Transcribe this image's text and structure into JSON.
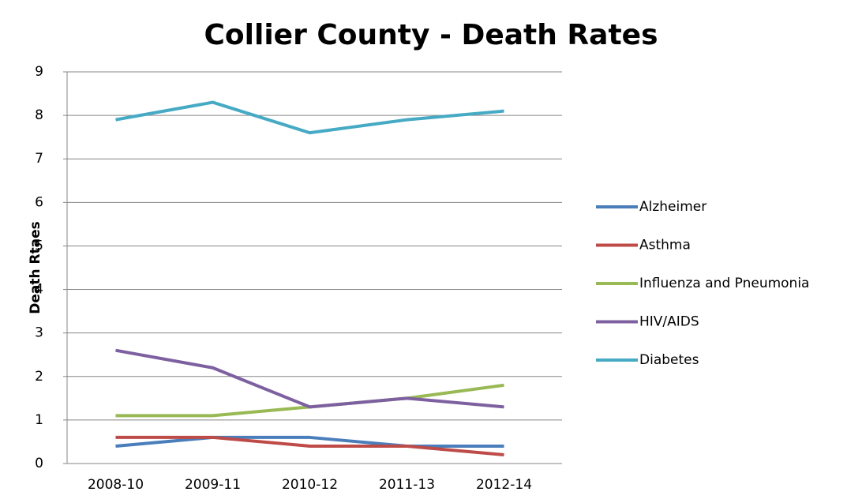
{
  "chart_data": {
    "type": "line",
    "title": "Collier County - Death Rates",
    "y_label": "Death Rtaes",
    "categories": [
      "2008-10",
      "2009-11",
      "2010-12",
      "2011-13",
      "2012-14"
    ],
    "series": [
      {
        "name": "Alzheimer",
        "color": "#4a7ebb",
        "values": [
          0.4,
          0.6,
          0.6,
          0.4,
          0.4
        ]
      },
      {
        "name": "Asthma",
        "color": "#be4b48",
        "values": [
          0.6,
          0.6,
          0.4,
          0.4,
          0.2
        ]
      },
      {
        "name": "Influenza and Pneumonia",
        "color": "#98b954",
        "values": [
          1.1,
          1.1,
          1.3,
          1.5,
          1.8
        ]
      },
      {
        "name": "HIV/AIDS",
        "color": "#7d60a0",
        "values": [
          2.6,
          2.2,
          1.3,
          1.5,
          1.3
        ]
      },
      {
        "name": "Diabetes",
        "color": "#46aac5",
        "values": [
          7.9,
          8.3,
          7.6,
          7.9,
          8.1
        ]
      }
    ],
    "ylim": [
      0,
      9
    ],
    "yticks": [
      0,
      1,
      2,
      3,
      4,
      5,
      6,
      7,
      8,
      9
    ],
    "grid": true,
    "legend": "right"
  }
}
